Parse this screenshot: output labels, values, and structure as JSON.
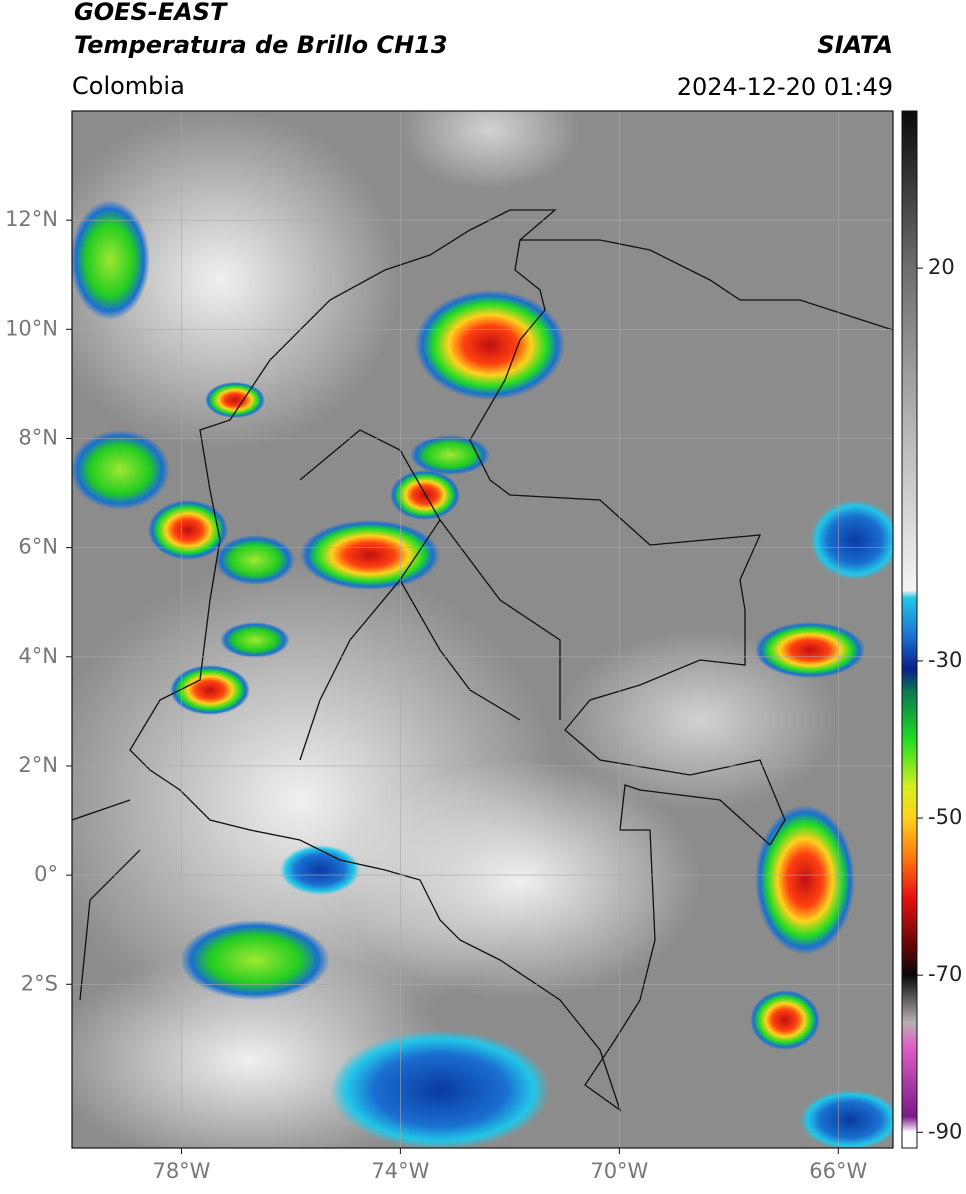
{
  "header": {
    "title": "GOES-EAST",
    "subtitle": "Temperatura de Brillo CH13",
    "source": "SIATA",
    "region": "Colombia",
    "timestamp": "2024-12-20 01:49"
  },
  "map": {
    "xlim": [
      -80,
      -65
    ],
    "ylim": [
      -5,
      14
    ],
    "xticks": [
      {
        "value": -78,
        "label": "78°W"
      },
      {
        "value": -74,
        "label": "74°W"
      },
      {
        "value": -70,
        "label": "70°W"
      },
      {
        "value": -66,
        "label": "66°W"
      }
    ],
    "yticks": [
      {
        "value": 12,
        "label": "12°N"
      },
      {
        "value": 10,
        "label": "10°N"
      },
      {
        "value": 8,
        "label": "8°N"
      },
      {
        "value": 6,
        "label": "6°N"
      },
      {
        "value": 4,
        "label": "4°N"
      },
      {
        "value": 2,
        "label": "2°N"
      },
      {
        "value": 0,
        "label": "0°"
      },
      {
        "value": -2,
        "label": "2°S"
      }
    ],
    "grid": true
  },
  "colorbar": {
    "lim": [
      -92,
      40
    ],
    "ticks": [
      20,
      -30,
      -50,
      -70,
      -90
    ],
    "colormap": [
      {
        "value": 40,
        "color": "#0a0a0a"
      },
      {
        "value": 20,
        "color": "#6e6e6e"
      },
      {
        "value": 0,
        "color": "#b4b4b4"
      },
      {
        "value": -21,
        "color": "#f4f4f4"
      },
      {
        "value": -22,
        "color": "#22c6e8"
      },
      {
        "value": -27,
        "color": "#1a6fd0"
      },
      {
        "value": -31,
        "color": "#0a1e8a"
      },
      {
        "value": -34,
        "color": "#0a7a50"
      },
      {
        "value": -40,
        "color": "#22dd22"
      },
      {
        "value": -46,
        "color": "#d4ee20"
      },
      {
        "value": -50,
        "color": "#ffd21e"
      },
      {
        "value": -55,
        "color": "#ff7a10"
      },
      {
        "value": -60,
        "color": "#e81212"
      },
      {
        "value": -66,
        "color": "#6a0606"
      },
      {
        "value": -70,
        "color": "#080808"
      },
      {
        "value": -76,
        "color": "#b8b0b0"
      },
      {
        "value": -79,
        "color": "#e060c8"
      },
      {
        "value": -88,
        "color": "#7a1a88"
      },
      {
        "value": -90,
        "color": "#ffffff"
      },
      {
        "value": -92,
        "color": "#ffffff"
      }
    ]
  }
}
